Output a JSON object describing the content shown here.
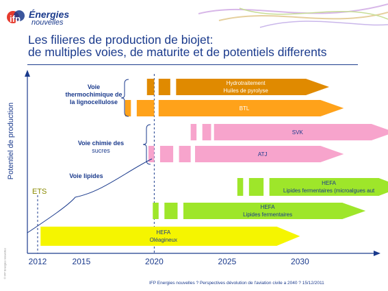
{
  "header": {
    "logo_line1": "Énergies",
    "logo_line2": "nouvelles",
    "title_line1": "Les filieres de production de biojet:",
    "title_line2": "de multiples voies, de maturite et de potentiels differents"
  },
  "footer": {
    "source": "IFP Energies nouvelles ? Perspectives dévolution de l'aviation civile a 2040 ? 15/12/2011",
    "side_note": "© IFP Energies nouvelles"
  },
  "groups": {
    "thermo": "Voie thermochimique de la lignocellulose",
    "sucres_title": "Voie chimie des",
    "sucres_sub": "sucres",
    "lipides": "Voie lipides"
  },
  "markers": {
    "ets": "ETS"
  },
  "colors": {
    "title": "#1a3a8c",
    "hydro": "#e08a00",
    "btl": "#ffa21a",
    "svk": "#f7a4cc",
    "atj": "#f7a4cc",
    "hefa_micro": "#9ee62a",
    "hefa_lipides": "#9ee62a",
    "hefa_oleagineux": "#f5f500"
  },
  "chart_data": {
    "type": "bar",
    "ylabel": "Potentiel de production",
    "xlabel": "",
    "x_ticks": [
      2012,
      2015,
      2020,
      2025,
      2030
    ],
    "series": [
      {
        "name": "Hydrotraitement Huiles de pyrolyse",
        "label1": "Hydrotraitement",
        "label2": "Huiles de pyrolyse",
        "start": 2019.5,
        "end": 2032,
        "dashes": [
          [
            2019.5,
            2020
          ],
          [
            2020.3,
            2021.1
          ],
          [
            2021.5,
            2032
          ]
        ],
        "color": "#e08a00"
      },
      {
        "name": "BTL",
        "label1": "BTL",
        "label2": "",
        "start": 2018,
        "end": 2033,
        "dashes": [
          [
            2018,
            2018.4
          ],
          [
            2018.8,
            2020
          ],
          [
            2020.3,
            2033
          ]
        ],
        "color": "#ffa21a"
      },
      {
        "name": "SVK",
        "label1": "SVK",
        "label2": "",
        "start": 2022.5,
        "end": 2036.5,
        "dashes": [
          [
            2022.5,
            2022.9
          ],
          [
            2023.3,
            2023.9
          ],
          [
            2024.1,
            2036.5
          ]
        ],
        "color": "#f7a4cc"
      },
      {
        "name": "ATJ",
        "label1": "ATJ",
        "label2": "",
        "start": 2019.6,
        "end": 2033,
        "dashes": [
          [
            2019.6,
            2020
          ],
          [
            2020.4,
            2021.3
          ],
          [
            2021.7,
            2022.5
          ],
          [
            2022.8,
            2033
          ]
        ],
        "color": "#f7a4cc"
      },
      {
        "name": "HEFA Lipides fermentaires (microalgues autotrophes)",
        "label1": "HEFA",
        "label2": "Lipides fermentaires (microalgues aut",
        "start": 2025.7,
        "end": 2037,
        "dashes": [
          [
            2025.7,
            2026.1
          ],
          [
            2026.5,
            2027.5
          ],
          [
            2027.9,
            2037
          ]
        ],
        "color": "#9ee62a"
      },
      {
        "name": "HEFA Lipides fermentaires",
        "label1": "HEFA",
        "label2": "Lipides fermentaires",
        "start": 2019.9,
        "end": 2034.5,
        "dashes": [
          [
            2019.9,
            2020.3
          ],
          [
            2020.7,
            2021.6
          ],
          [
            2022,
            2034.5
          ]
        ],
        "color": "#9ee62a"
      },
      {
        "name": "HEFA Oléagineux",
        "label1": "HEFA",
        "label2": "Oléagineux",
        "start": 2012.2,
        "end": 2030,
        "dashes": [
          [
            2012.2,
            2030
          ]
        ],
        "color": "#f5f500"
      }
    ]
  }
}
